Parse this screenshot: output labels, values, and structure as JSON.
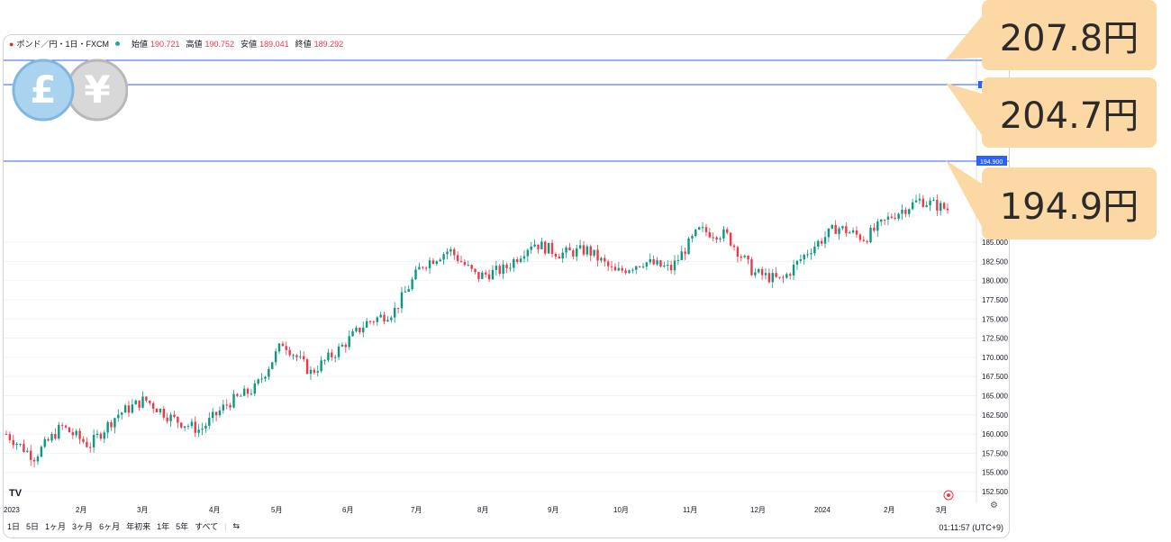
{
  "header": {
    "symbol": "ポンド／円・1日・FXCM",
    "open_label": "始値",
    "open": "190.721",
    "high_label": "高値",
    "high": "190.752",
    "low_label": "安値",
    "low": "189.041",
    "close_label": "終値",
    "close": "189.292"
  },
  "callouts": [
    {
      "text": "207.8円"
    },
    {
      "text": "204.7円"
    },
    {
      "text": "194.9円"
    }
  ],
  "price_tag": "194.900",
  "coins": {
    "left": "£",
    "right": "¥"
  },
  "toolbar": {
    "ranges": [
      "1日",
      "5日",
      "1ヶ月",
      "3ヶ月",
      "6ヶ月",
      "年初来",
      "1年",
      "5年",
      "すべて"
    ],
    "clock": "01:11:57 (UTC+9)"
  },
  "logo": "TV",
  "colors": {
    "up": "#089981",
    "down": "#f23645",
    "line": "#2962ff",
    "callout": "#fcd9a4"
  },
  "chart_data": {
    "type": "candlestick",
    "y_ticks": [
      "152.500",
      "155.000",
      "157.500",
      "160.000",
      "162.500",
      "165.000",
      "167.500",
      "170.000",
      "172.500",
      "175.000",
      "177.500",
      "180.000",
      "182.500",
      "185.000"
    ],
    "ylim": [
      151,
      210
    ],
    "x_ticks": [
      "2023",
      "2月",
      "3月",
      "4月",
      "5月",
      "6月",
      "7月",
      "8月",
      "9月",
      "10月",
      "11月",
      "12月",
      "2024",
      "2月",
      "3月"
    ],
    "horizontal_lines": [
      207.8,
      204.7,
      194.9
    ],
    "series": [
      {
        "date": "2023-01",
        "value": 160.0
      },
      {
        "date": "2023-01-15",
        "value": 157.0
      },
      {
        "date": "2023-02",
        "value": 161.0
      },
      {
        "date": "2023-02-15",
        "value": 158.5
      },
      {
        "date": "2023-03",
        "value": 162.5
      },
      {
        "date": "2023-03-15",
        "value": 164.5
      },
      {
        "date": "2023-04",
        "value": 162.0
      },
      {
        "date": "2023-04-10",
        "value": 160.5
      },
      {
        "date": "2023-04-20",
        "value": 164.0
      },
      {
        "date": "2023-05",
        "value": 166.0
      },
      {
        "date": "2023-05-10",
        "value": 172.0
      },
      {
        "date": "2023-05-20",
        "value": 168.0
      },
      {
        "date": "2023-06",
        "value": 171.0
      },
      {
        "date": "2023-06-15",
        "value": 174.5
      },
      {
        "date": "2023-06-25",
        "value": 176.0
      },
      {
        "date": "2023-07",
        "value": 182.0
      },
      {
        "date": "2023-07-15",
        "value": 184.0
      },
      {
        "date": "2023-07-25",
        "value": 180.5
      },
      {
        "date": "2023-08",
        "value": 181.5
      },
      {
        "date": "2023-08-15",
        "value": 185.0
      },
      {
        "date": "2023-09",
        "value": 183.5
      },
      {
        "date": "2023-09-15",
        "value": 184.0
      },
      {
        "date": "2023-10",
        "value": 181.0
      },
      {
        "date": "2023-10-15",
        "value": 182.5
      },
      {
        "date": "2023-11",
        "value": 181.5
      },
      {
        "date": "2023-11-15",
        "value": 186.5
      },
      {
        "date": "2023-11-25",
        "value": 186.0
      },
      {
        "date": "2023-12",
        "value": 181.0
      },
      {
        "date": "2023-12-15",
        "value": 180.0
      },
      {
        "date": "2024-01",
        "value": 184.0
      },
      {
        "date": "2024-01-15",
        "value": 187.0
      },
      {
        "date": "2024-02",
        "value": 185.5
      },
      {
        "date": "2024-02-15",
        "value": 188.5
      },
      {
        "date": "2024-02-25",
        "value": 190.5
      },
      {
        "date": "2024-03",
        "value": 189.3
      }
    ]
  }
}
